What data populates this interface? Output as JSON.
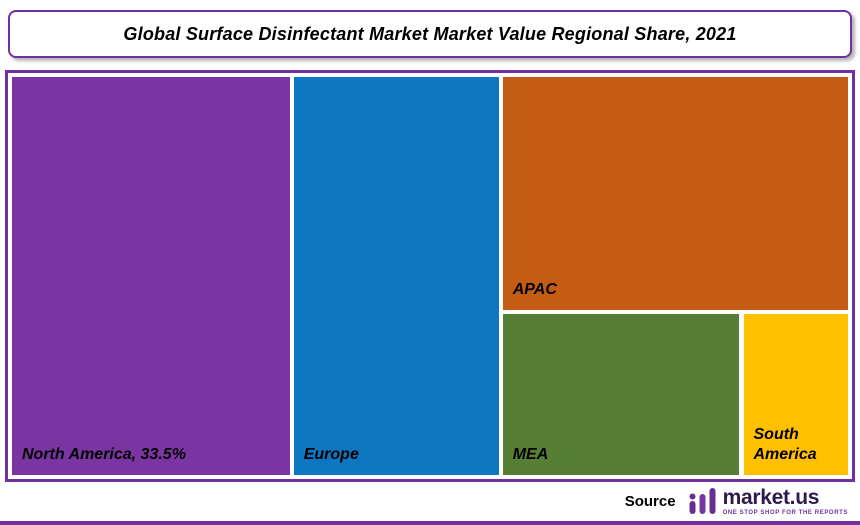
{
  "header": {
    "title": "Global Surface Disinfectant Market Market Value Regional Share, 2021"
  },
  "footer": {
    "source_label": "Source",
    "logo_text": "market.us",
    "logo_tagline": "ONE STOP SHOP FOR THE REPORTS"
  },
  "colors": {
    "accent_purple": "#7030a0",
    "logo_purple": "#6a2d91",
    "logo_text_dark": "#2d1b4e"
  },
  "chart_data": {
    "type": "treemap",
    "title": "Global Surface Disinfectant Market Market Value Regional Share, 2021",
    "legend": "none",
    "value_unit": "percent share of market value",
    "regions": [
      {
        "name": "North America",
        "label": "North America, 33.5%",
        "share_percent": 33.5,
        "color": "#7b35a2",
        "rect": {
          "x": 0,
          "y": 0,
          "w": 33.2,
          "h": 100
        }
      },
      {
        "name": "Europe",
        "label": "Europe",
        "share_percent": 24.5,
        "color": "#0d76c1",
        "rect": {
          "x": 33.7,
          "y": 0,
          "w": 24.5,
          "h": 100
        }
      },
      {
        "name": "APAC",
        "label": "APAC",
        "share_percent": 24.3,
        "color": "#c45c13",
        "rect": {
          "x": 58.7,
          "y": 0,
          "w": 41.3,
          "h": 58.5
        }
      },
      {
        "name": "MEA",
        "label": "MEA",
        "share_percent": 11.6,
        "color": "#567f35",
        "rect": {
          "x": 58.7,
          "y": 59.6,
          "w": 28.3,
          "h": 40.4
        }
      },
      {
        "name": "South America",
        "label": "South America",
        "share_percent": 5.1,
        "color": "#ffc000",
        "rect": {
          "x": 87.5,
          "y": 59.6,
          "w": 12.5,
          "h": 40.4
        }
      }
    ]
  }
}
